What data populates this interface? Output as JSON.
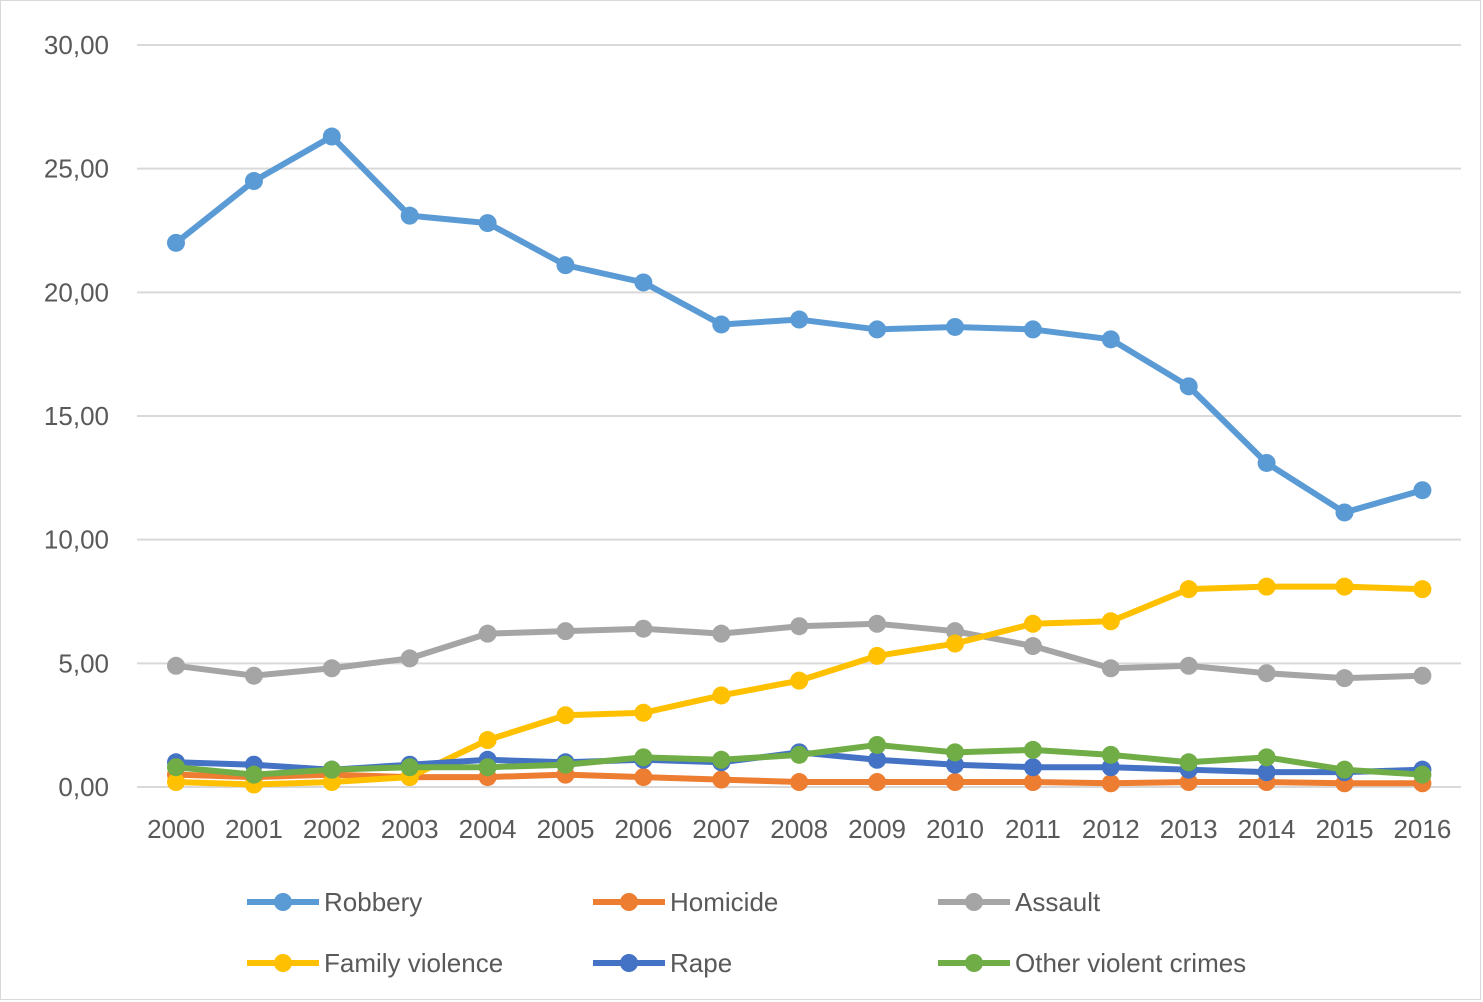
{
  "chart_data": {
    "type": "line",
    "title": "",
    "xlabel": "",
    "ylabel": "",
    "ylim": [
      0,
      30
    ],
    "y_ticks": [
      "0,00",
      "5,00",
      "10,00",
      "15,00",
      "20,00",
      "25,00",
      "30,00"
    ],
    "y_tick_values": [
      0,
      5,
      10,
      15,
      20,
      25,
      30
    ],
    "categories": [
      "2000",
      "2001",
      "2002",
      "2003",
      "2004",
      "2005",
      "2006",
      "2007",
      "2008",
      "2009",
      "2010",
      "2011",
      "2012",
      "2013",
      "2014",
      "2015",
      "2016"
    ],
    "grid": true,
    "legend_position": "bottom",
    "series": [
      {
        "name": "Robbery",
        "color": "#5B9BD5",
        "values": [
          22.0,
          24.5,
          26.3,
          23.1,
          22.8,
          21.1,
          20.4,
          18.7,
          18.9,
          18.5,
          18.6,
          18.5,
          18.1,
          16.2,
          13.1,
          11.1,
          12.0
        ]
      },
      {
        "name": "Homicide",
        "color": "#ED7D31",
        "values": [
          0.5,
          0.4,
          0.5,
          0.4,
          0.4,
          0.5,
          0.4,
          0.3,
          0.2,
          0.2,
          0.2,
          0.2,
          0.15,
          0.2,
          0.2,
          0.15,
          0.15
        ]
      },
      {
        "name": "Assault",
        "color": "#A5A5A5",
        "values": [
          4.9,
          4.5,
          4.8,
          5.2,
          6.2,
          6.3,
          6.4,
          6.2,
          6.5,
          6.6,
          6.3,
          5.7,
          4.8,
          4.9,
          4.6,
          4.4,
          4.5
        ]
      },
      {
        "name": "Family violence",
        "color": "#FFC000",
        "values": [
          0.2,
          0.1,
          0.2,
          0.4,
          1.9,
          2.9,
          3.0,
          3.7,
          4.3,
          5.3,
          5.8,
          6.6,
          6.7,
          8.0,
          8.1,
          8.1,
          8.0
        ]
      },
      {
        "name": "Rape",
        "color": "#4472C4",
        "values": [
          1.0,
          0.9,
          0.7,
          0.9,
          1.1,
          1.0,
          1.1,
          1.0,
          1.4,
          1.1,
          0.9,
          0.8,
          0.8,
          0.7,
          0.6,
          0.6,
          0.7
        ]
      },
      {
        "name": "Other violent crimes",
        "color": "#70AD47",
        "values": [
          0.8,
          0.5,
          0.7,
          0.8,
          0.8,
          0.9,
          1.2,
          1.1,
          1.3,
          1.7,
          1.4,
          1.5,
          1.3,
          1.0,
          1.2,
          0.7,
          0.5
        ]
      }
    ]
  }
}
